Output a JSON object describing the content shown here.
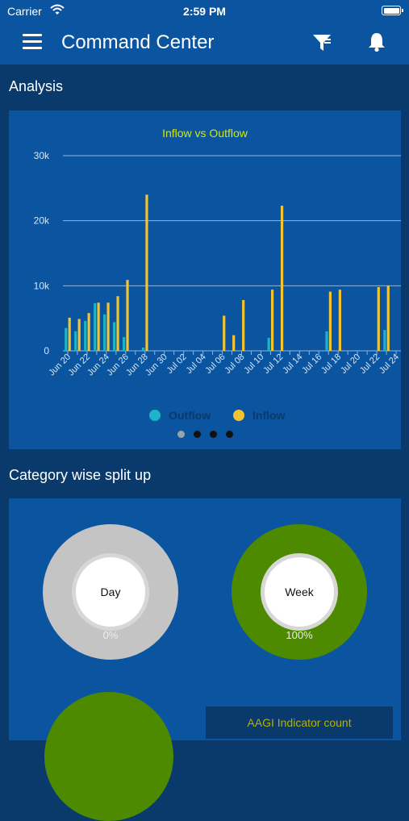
{
  "status_bar": {
    "carrier": "Carrier",
    "time": "2:59 PM",
    "wifi_icon": "wifi-icon",
    "battery_icon": "battery-icon"
  },
  "header": {
    "title": "Command Center",
    "menu_icon": "hamburger-menu-icon",
    "filter_icon": "funnel-filter-icon",
    "bell_icon": "bell-icon"
  },
  "sections": {
    "analysis_title": "Analysis",
    "category_title": "Category wise split up"
  },
  "colors": {
    "background": "#0a3a6b",
    "bar_background": "#0b55a0",
    "outflow": "#1fb3c8",
    "inflow": "#f3c431",
    "chart_title": "#d6e600",
    "donut_gray": "#c4c4c4",
    "donut_green": "#4e8a00"
  },
  "chart_data": {
    "type": "bar",
    "title": "Inflow vs Outflow",
    "xlabel": "",
    "ylabel": "",
    "ylim": [
      0,
      30000
    ],
    "y_ticks": [
      "0",
      "10k",
      "20k",
      "30k"
    ],
    "tick_labels": [
      "Jun 20",
      "Jun 22",
      "Jun 24",
      "Jun 26",
      "Jun 28",
      "Jun 30",
      "Jul 02",
      "Jul 04",
      "Jul 06",
      "Jul 08",
      "Jul 10",
      "Jul 12",
      "Jul 14",
      "Jul 16",
      "Jul 18",
      "Jul 20",
      "Jul 22",
      "Jul 24"
    ],
    "categories": [
      "Jun 20",
      "Jun 21",
      "Jun 22",
      "Jun 23",
      "Jun 24",
      "Jun 25",
      "Jun 26",
      "Jun 27",
      "Jun 28",
      "Jun 29",
      "Jun 30",
      "Jul 01",
      "Jul 02",
      "Jul 03",
      "Jul 04",
      "Jul 05",
      "Jul 06",
      "Jul 07",
      "Jul 08",
      "Jul 09",
      "Jul 10",
      "Jul 11",
      "Jul 12",
      "Jul 13",
      "Jul 14",
      "Jul 15",
      "Jul 16",
      "Jul 17",
      "Jul 18",
      "Jul 19",
      "Jul 20",
      "Jul 21",
      "Jul 22",
      "Jul 23",
      "Jul 24"
    ],
    "series": [
      {
        "name": "Outflow",
        "values": [
          3500,
          3000,
          4600,
          7300,
          5600,
          4400,
          2100,
          0,
          500,
          0,
          0,
          0,
          0,
          0,
          0,
          0,
          0,
          0,
          0,
          0,
          0,
          2000,
          0,
          0,
          0,
          0,
          0,
          3000,
          0,
          0,
          0,
          0,
          0,
          3200,
          0
        ]
      },
      {
        "name": "Inflow",
        "values": [
          5100,
          4900,
          5800,
          7400,
          7400,
          8400,
          10900,
          0,
          24000,
          0,
          0,
          0,
          0,
          0,
          0,
          0,
          5400,
          2400,
          7800,
          0,
          0,
          9400,
          22300,
          0,
          0,
          0,
          0,
          9100,
          9400,
          0,
          0,
          0,
          9800,
          10000,
          0
        ]
      }
    ],
    "grid": true,
    "legend_position": "bottom"
  },
  "pager": {
    "count": 4,
    "active": 0
  },
  "donuts": [
    {
      "label": "Day",
      "percent_label": "0%",
      "fraction": 0.0,
      "color": "#c4c4c4"
    },
    {
      "label": "Week",
      "percent_label": "100%",
      "fraction": 1.0,
      "color": "#4e8a00"
    }
  ],
  "aagi_label": "AAGI Indicator count"
}
